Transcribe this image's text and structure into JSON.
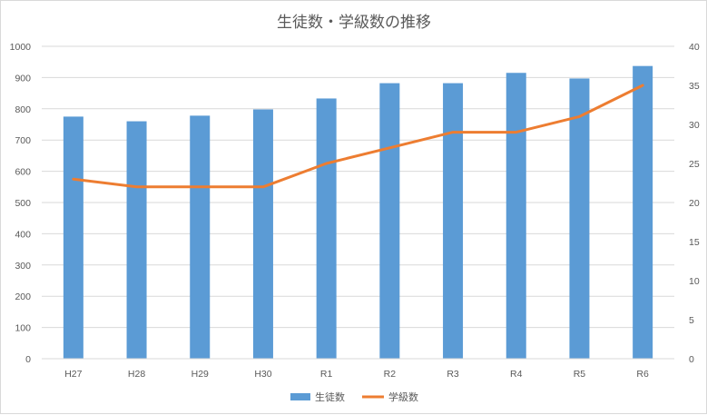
{
  "chart_data": {
    "type": "bar",
    "title": "生徒数・学級数の推移",
    "categories": [
      "H27",
      "H28",
      "H29",
      "H30",
      "R1",
      "R2",
      "R3",
      "R4",
      "R5",
      "R6"
    ],
    "series": [
      {
        "name": "生徒数",
        "type": "bar",
        "axis": "left",
        "color": "#5b9bd5",
        "values": [
          775,
          760,
          778,
          798,
          833,
          882,
          882,
          915,
          897,
          937
        ]
      },
      {
        "name": "学級数",
        "type": "line",
        "axis": "right",
        "color": "#ed7d31",
        "values": [
          23,
          22,
          22,
          22,
          25,
          27,
          29,
          29,
          31,
          35
        ]
      }
    ],
    "y_left": {
      "min": 0,
      "max": 1000,
      "ticks": [
        "0",
        "100",
        "200",
        "300",
        "400",
        "500",
        "600",
        "700",
        "800",
        "900",
        "1000"
      ]
    },
    "y_right": {
      "min": 0,
      "max": 40,
      "ticks": [
        "0",
        "5",
        "10",
        "15",
        "20",
        "25",
        "30",
        "35",
        "40"
      ]
    },
    "grid": true,
    "legend": "bottom"
  }
}
